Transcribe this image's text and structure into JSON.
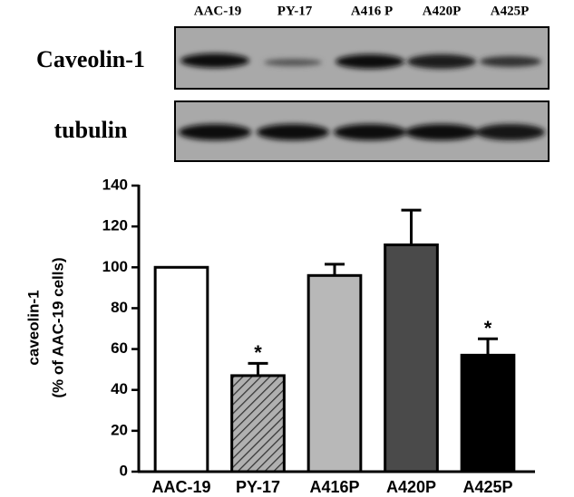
{
  "blot": {
    "lanes": [
      "AAC-19",
      "PY-17",
      "A416 P",
      "A420P",
      "A425P"
    ],
    "rows": [
      "Caveolin-1",
      "tubulin"
    ]
  },
  "chart_data": {
    "type": "bar",
    "y_label": [
      "caveolin-1",
      "(% of  AAC-19 cells)"
    ],
    "categories": [
      "AAC-19",
      "PY-17",
      "A416P",
      "A420P",
      "A425P"
    ],
    "values": [
      100,
      47,
      96,
      111,
      57
    ],
    "errors": [
      null,
      6,
      5.5,
      17,
      8
    ],
    "colors": [
      "#ffffff",
      "#b0b0b0",
      "#b8b8b8",
      "#4a4a4a",
      "#000000"
    ],
    "hatch": [
      false,
      true,
      false,
      false,
      false
    ],
    "annotations": [
      {
        "category": "PY-17",
        "text": "*"
      },
      {
        "category": "A425P",
        "text": "*"
      }
    ],
    "ylim": [
      0,
      140
    ],
    "yticks": [
      0,
      20,
      40,
      60,
      80,
      100,
      120,
      140
    ]
  }
}
